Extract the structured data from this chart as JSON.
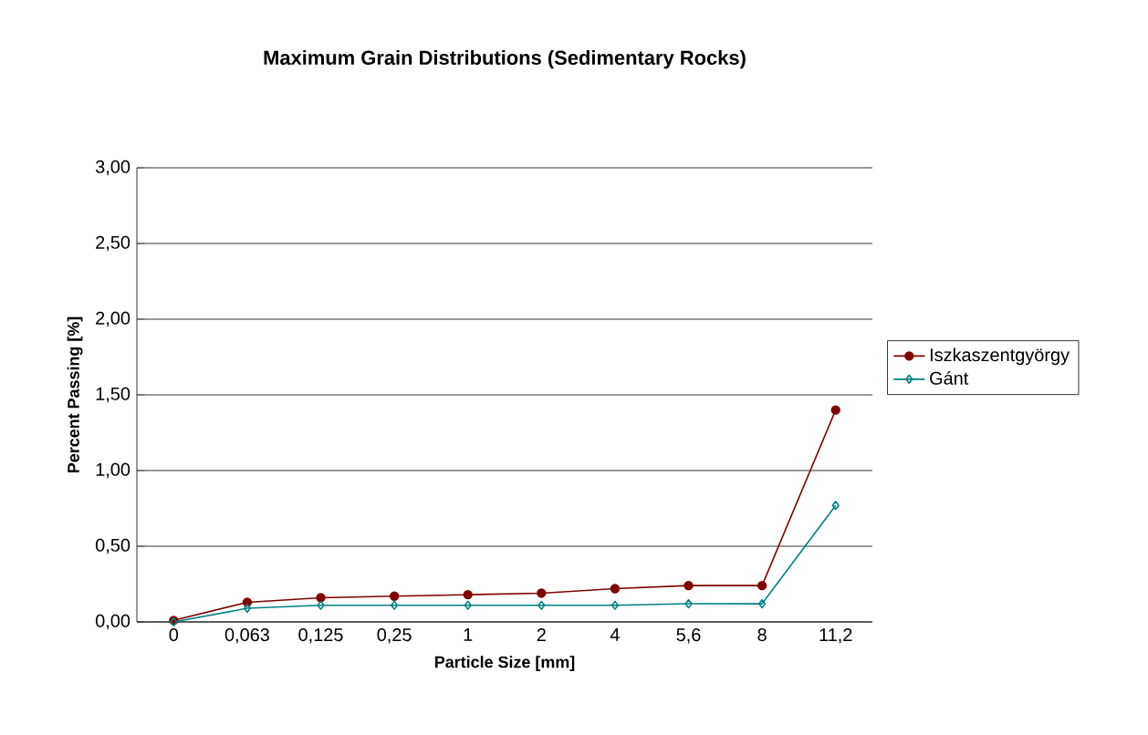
{
  "chart_data": {
    "type": "line",
    "title": "Maximum Grain Distributions (Sedimentary Rocks)",
    "xlabel": "Particle Size [mm]",
    "ylabel": "Percent Passing [%]",
    "categories": [
      "0",
      "0,063",
      "0,125",
      "0,25",
      "1",
      "2",
      "4",
      "5,6",
      "8",
      "11,2"
    ],
    "series": [
      {
        "name": "Iszkaszentgyörgy",
        "color": "#800000",
        "marker": "circle",
        "values": [
          0.01,
          0.13,
          0.16,
          0.17,
          0.18,
          0.19,
          0.22,
          0.24,
          0.24,
          1.4
        ]
      },
      {
        "name": "Gánt",
        "color": "#008080",
        "marker": "diamond",
        "values": [
          0.0,
          0.09,
          0.11,
          0.11,
          0.11,
          0.11,
          0.11,
          0.12,
          0.12,
          0.77
        ]
      }
    ],
    "ylim": [
      0,
      3
    ],
    "yticks": [
      {
        "value": 0,
        "label": "0,00"
      },
      {
        "value": 0.5,
        "label": "0,50"
      },
      {
        "value": 1,
        "label": "1,00"
      },
      {
        "value": 1.5,
        "label": "1,50"
      },
      {
        "value": 2,
        "label": "2,00"
      },
      {
        "value": 2.5,
        "label": "2,50"
      },
      {
        "value": 3,
        "label": "3,00"
      }
    ],
    "grid": "y",
    "legend": "right"
  }
}
